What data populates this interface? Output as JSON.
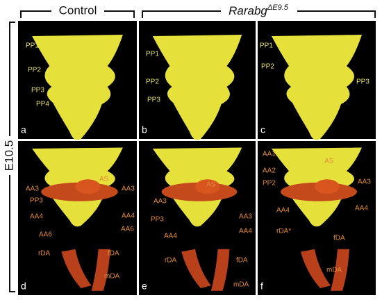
{
  "header": {
    "control": "Control",
    "mutant_gene": "Rarabg",
    "mutant_allele": "ΔE9.5"
  },
  "row_label": "E10.5",
  "panels": [
    {
      "letter": "a",
      "labels": [
        "PP1",
        "PP2",
        "PP3",
        "PP4"
      ]
    },
    {
      "letter": "b",
      "labels": [
        "PP1",
        "PP2",
        "PP3"
      ]
    },
    {
      "letter": "c",
      "labels": [
        "PP1",
        "PP2",
        "PP3"
      ]
    },
    {
      "letter": "d",
      "labels": [
        "AS",
        "AA3",
        "AA3",
        "PP3",
        "AA4",
        "AA4",
        "AA6",
        "AA6",
        "rDA",
        "fDA",
        "mDA"
      ]
    },
    {
      "letter": "e",
      "labels": [
        "AS",
        "AA3",
        "AA3",
        "PP3",
        "AA4",
        "AA4",
        "rDA",
        "fDA",
        "mDA"
      ]
    },
    {
      "letter": "f",
      "labels": [
        "AA1",
        "AA2",
        "AS",
        "AA3",
        "PP2",
        "AA4",
        "AA4",
        "rDA*",
        "fDA",
        "mDA"
      ]
    }
  ]
}
